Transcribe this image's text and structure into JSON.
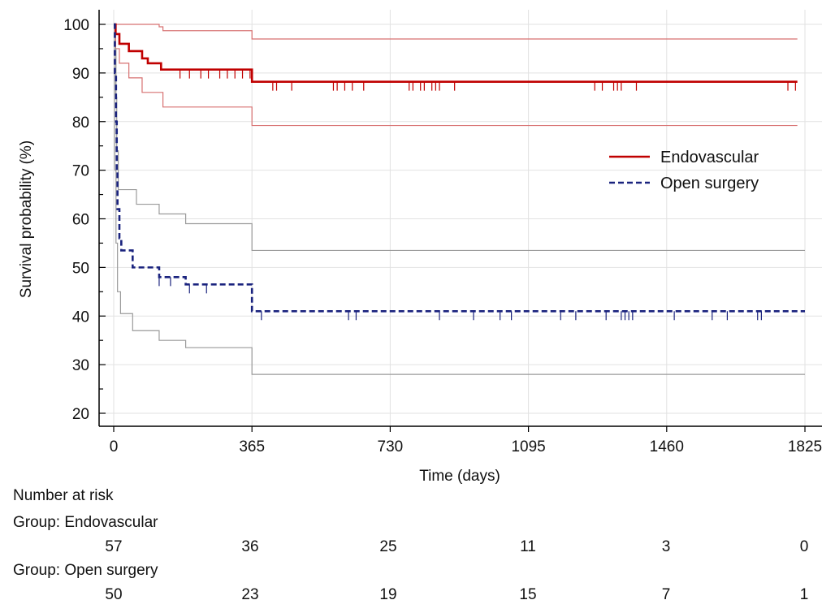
{
  "chart_data": {
    "type": "line",
    "xlabel": "Time (days)",
    "ylabel": "Survival probability (%)",
    "xlim": [
      0,
      1825
    ],
    "ylim": [
      20,
      100
    ],
    "xticks": [
      0,
      365,
      730,
      1095,
      1460,
      1825
    ],
    "yticks": [
      20,
      30,
      40,
      50,
      60,
      70,
      80,
      90,
      100
    ],
    "grid": true,
    "legend_position": "right",
    "series": [
      {
        "name": "Endovascular",
        "color": "#c00000",
        "style": "solid",
        "steps": [
          [
            0,
            100
          ],
          [
            5,
            98
          ],
          [
            15,
            96
          ],
          [
            40,
            94.5
          ],
          [
            75,
            93
          ],
          [
            90,
            92
          ],
          [
            125,
            90.7
          ],
          [
            365,
            88.2
          ],
          [
            1805,
            88.2
          ]
        ],
        "ci_upper": [
          [
            0,
            100
          ],
          [
            120,
            99.5
          ],
          [
            130,
            98.7
          ],
          [
            365,
            97
          ],
          [
            1805,
            97
          ]
        ],
        "ci_lower": [
          [
            0,
            100
          ],
          [
            5,
            95
          ],
          [
            15,
            92
          ],
          [
            40,
            89
          ],
          [
            75,
            86
          ],
          [
            130,
            83
          ],
          [
            365,
            79.2
          ],
          [
            1805,
            79.2
          ]
        ],
        "censor_times": [
          175,
          200,
          230,
          250,
          280,
          300,
          320,
          340,
          360,
          420,
          430,
          470,
          580,
          590,
          610,
          630,
          660,
          780,
          790,
          810,
          820,
          840,
          850,
          860,
          900,
          1270,
          1290,
          1320,
          1330,
          1340,
          1380,
          1780,
          1800
        ]
      },
      {
        "name": "Open surgery",
        "color": "#1a237e",
        "style": "dashed",
        "steps": [
          [
            0,
            100
          ],
          [
            3,
            90
          ],
          [
            6,
            80
          ],
          [
            8,
            70
          ],
          [
            10,
            62
          ],
          [
            15,
            56
          ],
          [
            20,
            53.5
          ],
          [
            50,
            50
          ],
          [
            120,
            48
          ],
          [
            190,
            46.5
          ],
          [
            365,
            41
          ],
          [
            1825,
            41
          ]
        ],
        "ci_upper": [
          [
            0,
            100
          ],
          [
            3,
            95
          ],
          [
            6,
            85
          ],
          [
            8,
            74
          ],
          [
            12,
            66
          ],
          [
            60,
            63
          ],
          [
            120,
            61
          ],
          [
            190,
            59
          ],
          [
            365,
            53.5
          ],
          [
            1825,
            53.5
          ]
        ],
        "ci_lower": [
          [
            0,
            100
          ],
          [
            3,
            70
          ],
          [
            6,
            55
          ],
          [
            10,
            45
          ],
          [
            18,
            40.5
          ],
          [
            50,
            37
          ],
          [
            120,
            35
          ],
          [
            190,
            33.5
          ],
          [
            365,
            28
          ],
          [
            1825,
            28
          ]
        ],
        "censor_times": [
          120,
          150,
          200,
          245,
          390,
          620,
          640,
          860,
          950,
          1020,
          1050,
          1180,
          1220,
          1300,
          1340,
          1350,
          1360,
          1370,
          1480,
          1580,
          1620,
          1700,
          1710
        ]
      }
    ]
  },
  "risk_table": {
    "title": "Number at risk",
    "groups": [
      {
        "label": "Group: Endovascular",
        "values": [
          57,
          36,
          25,
          11,
          3,
          0
        ]
      },
      {
        "label": "Group: Open surgery",
        "values": [
          50,
          23,
          19,
          15,
          7,
          1
        ]
      }
    ]
  }
}
